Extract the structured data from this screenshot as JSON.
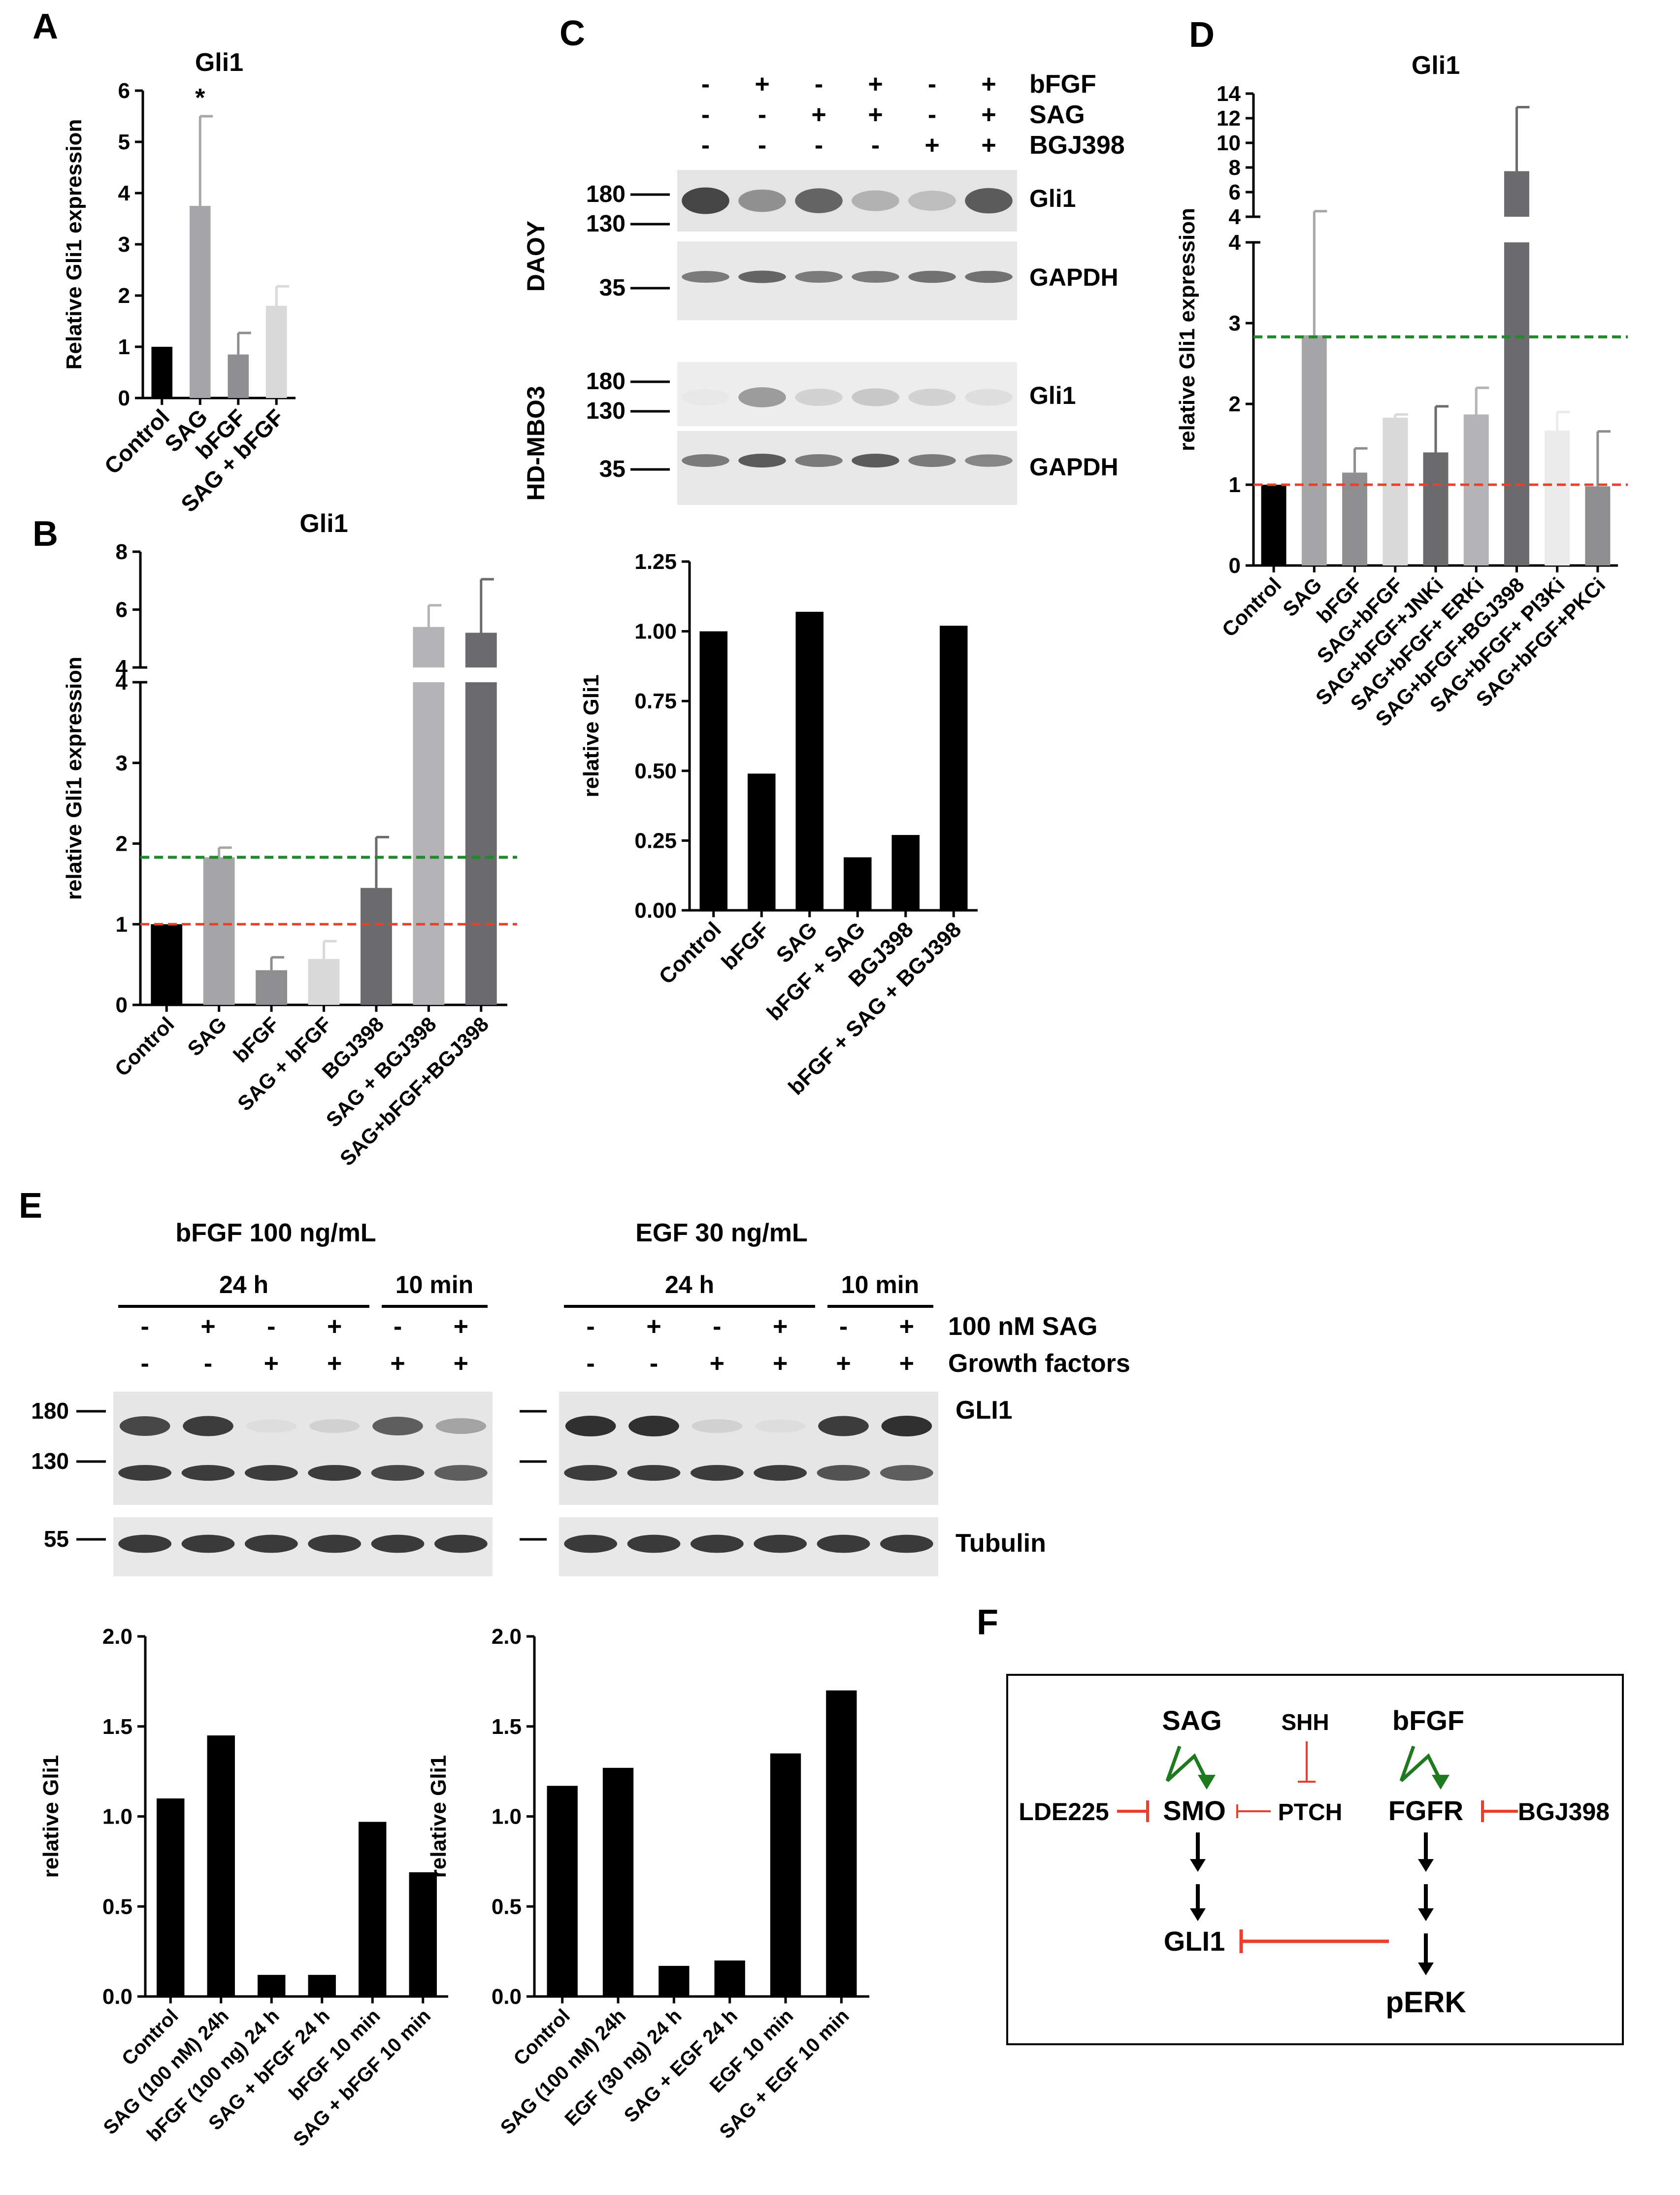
{
  "panel_letters": {
    "A": "A",
    "B": "B",
    "C": "C",
    "D": "D",
    "E": "E",
    "F": "F"
  },
  "colors": {
    "red_line": "#e8402c",
    "green_line": "#1f8a2a",
    "inhibitor": "#e8402c",
    "activator": "#1f7a1f"
  },
  "chart_data": [
    {
      "id": "A",
      "type": "bar",
      "title": "Gli1",
      "ylabel": "Relative Gli1 expression",
      "categories": [
        "Control",
        "SAG",
        "bFGF",
        "SAG + bFGF"
      ],
      "values": [
        1.0,
        3.75,
        0.85,
        1.8
      ],
      "errors": [
        0,
        1.75,
        0.42,
        0.38
      ],
      "colors": [
        "#000000",
        "#a6a6a8",
        "#8e8e90",
        "#d9d9d9"
      ],
      "significance": [
        "",
        "*",
        "",
        ""
      ],
      "ylim": [
        0,
        6
      ],
      "yticks": [
        "0",
        "1",
        "2",
        "3",
        "4",
        "5",
        "6"
      ]
    },
    {
      "id": "B",
      "type": "bar",
      "title": "Gli1",
      "ylabel": "relative Gli1 expression",
      "categories": [
        "Control",
        "SAG",
        "bFGF",
        "SAG + bFGF",
        "BGJ398",
        "SAG + BGJ398",
        "SAG+bFGF+BGJ398"
      ],
      "values": [
        1.0,
        1.83,
        0.43,
        0.57,
        1.45,
        5.4,
        5.2
      ],
      "errors": [
        0,
        0.12,
        0.16,
        0.22,
        0.63,
        0.75,
        1.85
      ],
      "colors": [
        "#000000",
        "#a6a6a8",
        "#8e8e90",
        "#d9d9d9",
        "#6b6b6d",
        "#b4b4b6",
        "#6b6b6d"
      ],
      "axis_break": {
        "lower": [
          0,
          4
        ],
        "upper": [
          4,
          8
        ]
      },
      "yticks_lower": [
        "0",
        "1",
        "2",
        "3",
        "4"
      ],
      "yticks_upper": [
        "4",
        "6",
        "8"
      ],
      "reference_lines": {
        "red": 1.0,
        "green": 1.83
      }
    },
    {
      "id": "C",
      "type": "bar",
      "ylabel": "relative Gli1",
      "categories": [
        "Control",
        "bFGF",
        "SAG",
        "bFGF + SAG",
        "BGJ398",
        "bFGF + SAG + BGJ398"
      ],
      "values": [
        1.0,
        0.49,
        1.07,
        0.19,
        0.27,
        1.02
      ],
      "ylim": [
        0,
        1.25
      ],
      "yticks": [
        "0.00",
        "0.25",
        "0.50",
        "0.75",
        "1.00",
        "1.25"
      ]
    },
    {
      "id": "D",
      "type": "bar",
      "title": "Gli1",
      "ylabel": "relative Gli1 expression",
      "categories": [
        "Control",
        "SAG",
        "bFGF",
        "SAG+bFGF",
        "SAG+bFGF+JNKi",
        "SAG+bFGF+ ERKi",
        "SAG+bFGF+BGJ398",
        "SAG+bFGF+ PI3Ki",
        "SAG+bFGF+PKCi"
      ],
      "values": [
        1.0,
        2.85,
        1.15,
        1.83,
        1.4,
        1.87,
        7.7,
        1.67,
        0.98
      ],
      "errors": [
        0,
        1.6,
        0.3,
        0.04,
        0.57,
        0.33,
        5.2,
        0.23,
        0.68
      ],
      "colors": [
        "#000000",
        "#a6a6a8",
        "#8e8e90",
        "#d9d9d9",
        "#6b6b6d",
        "#b4b4b6",
        "#6b6b6d",
        "#ebebeb",
        "#8e8e90"
      ],
      "axis_break": {
        "lower": [
          0,
          4
        ],
        "upper": [
          4,
          14
        ]
      },
      "yticks_lower": [
        "0",
        "1",
        "2",
        "3",
        "4"
      ],
      "yticks_upper": [
        "4",
        "6",
        "8",
        "10",
        "12",
        "14"
      ],
      "reference_lines": {
        "red": 1.0,
        "green": 2.83
      }
    },
    {
      "id": "E1",
      "type": "bar",
      "ylabel": "relative Gli1",
      "categories": [
        "Control",
        "SAG (100 nM) 24h",
        "bFGF (100 ng) 24 h",
        "SAG + bFGF 24 h",
        "bFGF 10 min",
        "SAG + bFGF 10 min"
      ],
      "values": [
        1.1,
        1.45,
        0.12,
        0.12,
        0.97,
        0.69
      ],
      "ylim": [
        0,
        2
      ],
      "yticks": [
        "0.0",
        "0.5",
        "1.0",
        "1.5",
        "2.0"
      ]
    },
    {
      "id": "E2",
      "type": "bar",
      "ylabel": "relative Gli1",
      "categories": [
        "Control",
        "SAG (100 nM) 24h",
        "EGF (30 ng) 24 h",
        "SAG + EGF 24 h",
        "EGF 10 min",
        "SAG + EGF 10 min"
      ],
      "values": [
        1.17,
        1.27,
        0.17,
        0.2,
        1.35,
        1.7
      ],
      "ylim": [
        0,
        2
      ],
      "yticks": [
        "0.0",
        "0.5",
        "1.0",
        "1.5",
        "2.0"
      ]
    }
  ],
  "blot_C": {
    "conditions": {
      "bfgf": [
        "-",
        "+",
        "-",
        "+",
        "-",
        "+"
      ],
      "sag": [
        "-",
        "-",
        "+",
        "+",
        "-",
        "+"
      ],
      "bgj": [
        "-",
        "-",
        "-",
        "-",
        "+",
        "+"
      ]
    },
    "condition_labels": {
      "bfgf": "bFGF",
      "sag": "SAG",
      "bgj": "BGJ398"
    },
    "cell_lines": {
      "daoy": "DAOY",
      "hd": "HD-MBO3"
    },
    "bands": {
      "gli1": "Gli1",
      "gapdh": "GAPDH"
    },
    "markers": {
      "m180": "180",
      "m130": "130",
      "m35": "35"
    }
  },
  "blot_E": {
    "left_title": "bFGF 100 ng/mL",
    "right_title": "EGF 30 ng/mL",
    "time_24": "24 h",
    "time_10": "10 min",
    "sag_row": [
      "-",
      "+",
      "-",
      "+",
      "-",
      "+"
    ],
    "gf_row": [
      "-",
      "-",
      "+",
      "+",
      "+",
      "+"
    ],
    "sag_label": "100 nM SAG",
    "gf_label": "Growth factors",
    "band_gli1": "GLI1",
    "band_tubulin": "Tubulin",
    "markers": {
      "m180": "180",
      "m130": "130",
      "m55": "55"
    }
  },
  "diagram_F": {
    "sag": "SAG",
    "shh": "SHH",
    "bfgf": "bFGF",
    "lde225": "LDE225",
    "smo": "SMO",
    "ptch": "PTCH",
    "fgfr": "FGFR",
    "bgj398": "BGJ398",
    "gli1": "GLI1",
    "perk": "pERK"
  }
}
